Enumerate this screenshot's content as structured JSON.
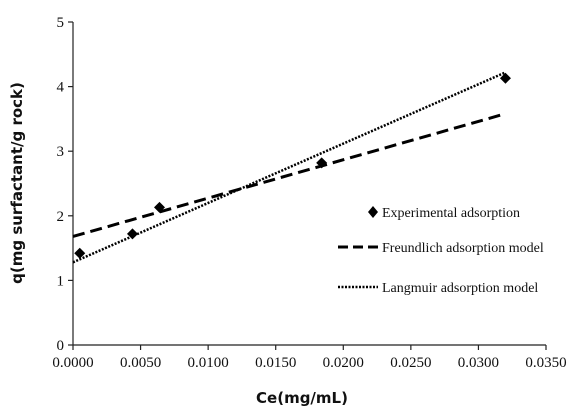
{
  "chart_data": {
    "type": "scatter",
    "xlabel": "Ce(mg/mL)",
    "ylabel": "q(mg surfactant/g rock)",
    "xlim": [
      0,
      0.035
    ],
    "ylim": [
      0,
      5
    ],
    "x_ticks": [
      "0.0000",
      "0.0050",
      "0.0100",
      "0.0150",
      "0.0200",
      "0.0250",
      "0.0300",
      "0.0350"
    ],
    "y_ticks": [
      "0",
      "1",
      "2",
      "3",
      "4",
      "5"
    ],
    "grid": false,
    "legend_position": "right",
    "series": [
      {
        "name": "Experimental adsorption",
        "style": "diamond-markers",
        "color": "#000000",
        "x": [
          0.0005,
          0.0044,
          0.0064,
          0.0184,
          0.032
        ],
        "y": [
          1.42,
          1.72,
          2.13,
          2.82,
          4.13
        ]
      },
      {
        "name": "Freundlich adsorption model",
        "style": "dashed-line",
        "color": "#000000",
        "x": [
          0.0,
          0.032
        ],
        "y": [
          1.68,
          3.58
        ]
      },
      {
        "name": "Langmuir adsorption model",
        "style": "dotted-line",
        "color": "#000000",
        "x": [
          0.0,
          0.032
        ],
        "y": [
          1.28,
          4.22
        ]
      }
    ]
  }
}
